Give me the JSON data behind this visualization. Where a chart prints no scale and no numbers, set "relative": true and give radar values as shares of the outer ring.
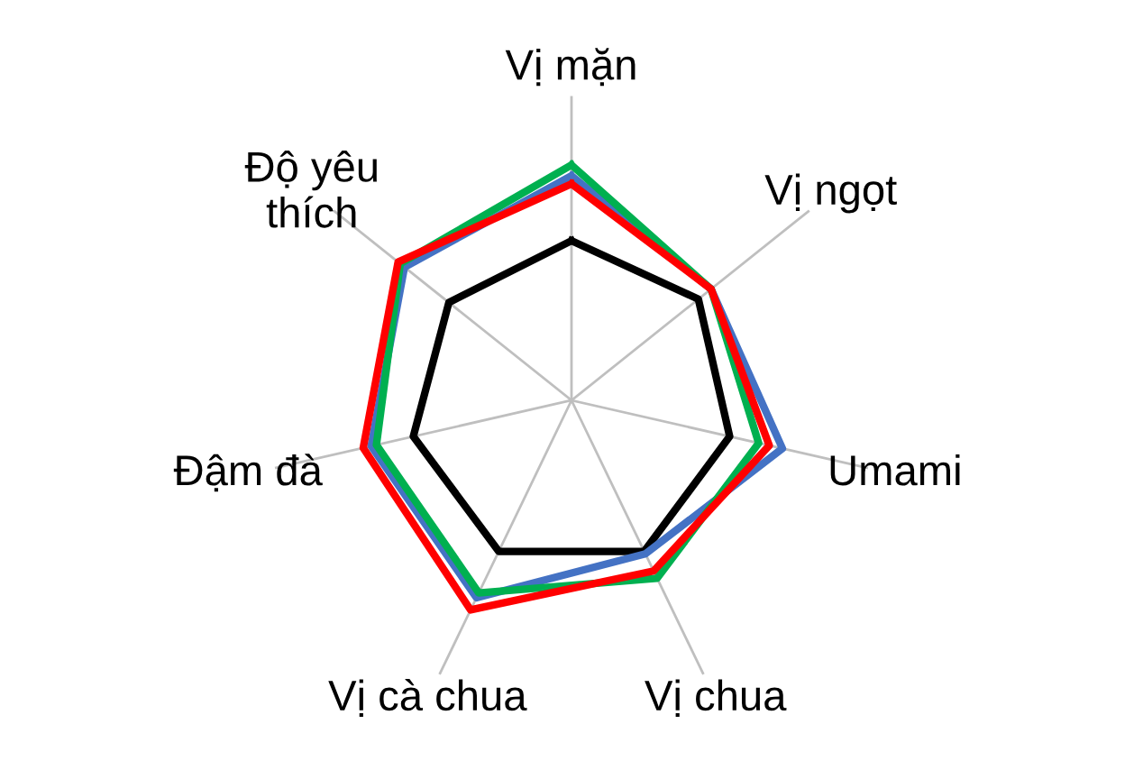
{
  "chart_data": {
    "type": "radar",
    "relative": true,
    "categories": [
      "Vị mặn",
      "Vị ngọt",
      "Umami",
      "Vị chua",
      "Vị cà chua",
      "Đậm đà",
      "Độ yêu\nthích"
    ],
    "series": [
      {
        "color": "#000000",
        "values": [
          0.59,
          0.6,
          0.6,
          0.62,
          0.62,
          0.6,
          0.58
        ]
      },
      {
        "color": "#4472c4",
        "values": [
          0.83,
          0.66,
          0.8,
          0.63,
          0.81,
          0.76,
          0.79
        ]
      },
      {
        "color": "#00b050",
        "values": [
          0.87,
          0.66,
          0.71,
          0.73,
          0.79,
          0.74,
          0.81
        ]
      },
      {
        "color": "#ff0000",
        "values": [
          0.8,
          0.66,
          0.75,
          0.7,
          0.86,
          0.79,
          0.82
        ]
      }
    ],
    "grid": "x",
    "line_style": "solid",
    "marker": "none"
  }
}
